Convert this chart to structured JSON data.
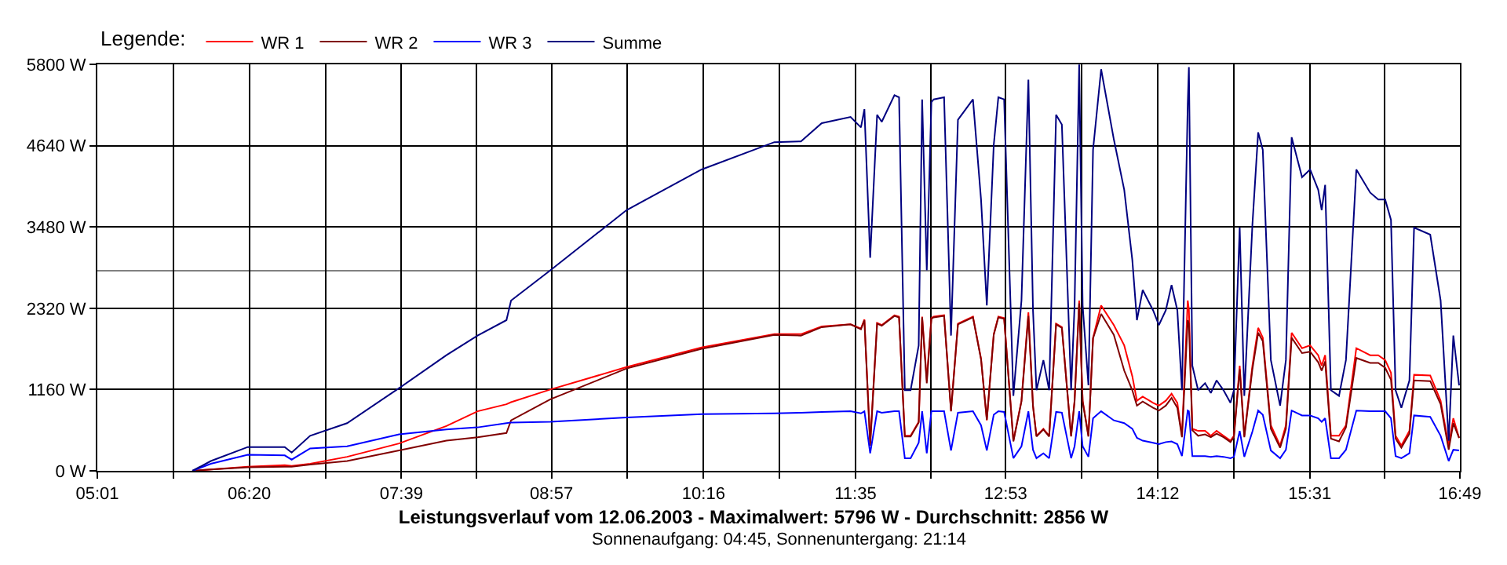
{
  "chart_data": {
    "type": "line",
    "title": "Leistungsverlauf vom 12.06.2003 - Maximalwert: 5796 W - Durchschnitt: 2856 W",
    "subtitle": "Sonnenaufgang: 04:45, Sonnenuntergang: 21:14",
    "legend_title": "Legende:",
    "x": [
      5.84,
      6.0,
      6.32,
      6.64,
      6.7,
      6.86,
      7.18,
      7.63,
      8.04,
      8.31,
      8.56,
      8.6,
      8.94,
      9.6,
      10.25,
      10.88,
      11.11,
      11.29,
      11.54,
      11.63,
      11.66,
      11.71,
      11.77,
      11.81,
      11.92,
      11.96,
      12.01,
      12.06,
      12.13,
      12.16,
      12.2,
      12.24,
      12.26,
      12.35,
      12.41,
      12.47,
      12.6,
      12.67,
      12.72,
      12.78,
      12.82,
      12.87,
      12.95,
      13.02,
      13.08,
      13.12,
      13.15,
      13.21,
      13.26,
      13.32,
      13.37,
      13.45,
      13.48,
      13.52,
      13.55,
      13.6,
      13.64,
      13.71,
      13.82,
      13.91,
      13.98,
      14.02,
      14.07,
      14.16,
      14.21,
      14.27,
      14.32,
      14.37,
      14.41,
      14.46,
      14.47,
      14.5,
      14.55,
      14.61,
      14.66,
      14.71,
      14.77,
      14.83,
      14.86,
      14.91,
      14.95,
      15.02,
      15.07,
      15.11,
      15.18,
      15.26,
      15.31,
      15.36,
      15.45,
      15.52,
      15.59,
      15.62,
      15.65,
      15.7,
      15.77,
      15.83,
      15.92,
      16.04,
      16.11,
      16.17,
      16.22,
      16.26,
      16.31,
      16.38,
      16.42,
      16.56,
      16.65,
      16.72,
      16.76,
      16.81
    ],
    "series": [
      {
        "name": "WR 1",
        "color": "#ff0000",
        "values": [
          0,
          20,
          60,
          80,
          70,
          100,
          200,
          390,
          640,
          850,
          950,
          980,
          1160,
          1480,
          1760,
          1950,
          1950,
          2060,
          2090,
          2030,
          2160,
          400,
          2110,
          2080,
          2220,
          2200,
          500,
          500,
          700,
          2200,
          1300,
          2180,
          2200,
          2220,
          860,
          2100,
          2200,
          1600,
          720,
          1950,
          2200,
          2180,
          430,
          1000,
          2260,
          930,
          500,
          600,
          500,
          2100,
          2050,
          500,
          1000,
          2430,
          1000,
          500,
          1900,
          2360,
          2080,
          1790,
          1350,
          1000,
          1060,
          970,
          930,
          1000,
          1100,
          970,
          500,
          2430,
          2300,
          600,
          570,
          570,
          500,
          570,
          500,
          430,
          500,
          1500,
          500,
          1500,
          2040,
          1900,
          650,
          360,
          650,
          1970,
          1750,
          1790,
          1650,
          1500,
          1650,
          500,
          500,
          650,
          1750,
          1650,
          1650,
          1580,
          1400,
          500,
          360,
          570,
          1370,
          1360,
          1000,
          360,
          750,
          470
        ]
      },
      {
        "name": "WR 2",
        "color": "#800000",
        "values": [
          0,
          20,
          50,
          60,
          60,
          90,
          140,
          290,
          430,
          480,
          540,
          720,
          1020,
          1460,
          1740,
          1940,
          1930,
          2050,
          2090,
          2020,
          2150,
          360,
          2100,
          2070,
          2210,
          2190,
          490,
          490,
          690,
          2190,
          1250,
          2170,
          2190,
          2210,
          850,
          2090,
          2190,
          1590,
          730,
          1940,
          2190,
          2170,
          420,
          990,
          2210,
          920,
          490,
          590,
          490,
          2090,
          2040,
          490,
          990,
          2390,
          990,
          490,
          1890,
          2240,
          1940,
          1430,
          1150,
          930,
          990,
          900,
          860,
          930,
          1040,
          900,
          480,
          2150,
          2100,
          580,
          500,
          520,
          480,
          530,
          480,
          410,
          480,
          1450,
          480,
          1450,
          1970,
          1850,
          600,
          330,
          600,
          1900,
          1680,
          1700,
          1550,
          1430,
          1560,
          460,
          420,
          620,
          1610,
          1540,
          1540,
          1470,
          1300,
          460,
          330,
          530,
          1290,
          1280,
          950,
          300,
          680,
          470
        ]
      },
      {
        "name": "WR 3",
        "color": "#0000ff",
        "values": [
          0,
          100,
          230,
          220,
          160,
          320,
          350,
          520,
          590,
          620,
          680,
          690,
          700,
          760,
          810,
          820,
          830,
          840,
          850,
          820,
          850,
          250,
          850,
          830,
          850,
          850,
          180,
          180,
          400,
          850,
          250,
          850,
          850,
          850,
          290,
          830,
          850,
          650,
          290,
          800,
          850,
          840,
          180,
          350,
          850,
          300,
          180,
          250,
          180,
          840,
          830,
          180,
          350,
          850,
          350,
          200,
          750,
          850,
          720,
          680,
          600,
          470,
          430,
          400,
          380,
          410,
          420,
          380,
          210,
          860,
          850,
          210,
          210,
          210,
          200,
          210,
          200,
          180,
          200,
          570,
          200,
          560,
          860,
          800,
          290,
          180,
          300,
          860,
          790,
          790,
          750,
          700,
          750,
          180,
          180,
          300,
          860,
          850,
          850,
          850,
          750,
          210,
          180,
          250,
          790,
          770,
          500,
          140,
          300,
          290
        ]
      },
      {
        "name": "Summe",
        "color": "#000080",
        "values": [
          0,
          140,
          340,
          340,
          260,
          500,
          680,
          1180,
          1650,
          1930,
          2150,
          2430,
          2860,
          3720,
          4300,
          4690,
          4700,
          4960,
          5050,
          4900,
          5160,
          3040,
          5080,
          4980,
          5360,
          5330,
          1150,
          1150,
          1790,
          5300,
          2860,
          5260,
          5300,
          5330,
          1930,
          5010,
          5300,
          3870,
          2360,
          4650,
          5330,
          5300,
          1070,
          2430,
          5580,
          2290,
          1150,
          1580,
          1150,
          5080,
          4940,
          1150,
          2360,
          5796,
          2360,
          1220,
          4580,
          5730,
          4730,
          4010,
          3010,
          2150,
          2580,
          2290,
          2080,
          2290,
          2650,
          2290,
          1150,
          5230,
          5760,
          1500,
          1150,
          1250,
          1110,
          1290,
          1150,
          970,
          1150,
          3470,
          1070,
          3510,
          4830,
          4580,
          1580,
          930,
          1580,
          4760,
          4190,
          4300,
          4010,
          3720,
          4080,
          1150,
          1070,
          1580,
          4300,
          3970,
          3870,
          3870,
          3580,
          1150,
          900,
          1290,
          3470,
          3370,
          2430,
          430,
          1930,
          1220
        ]
      }
    ],
    "xlim": [
      5.017,
      16.817
    ],
    "xticks": [
      {
        "value": 5.017,
        "label": "05:01"
      },
      {
        "value": 5.675,
        "label": null
      },
      {
        "value": 6.333,
        "label": "06:20"
      },
      {
        "value": 6.992,
        "label": null
      },
      {
        "value": 7.65,
        "label": "07:39"
      },
      {
        "value": 8.3,
        "label": null
      },
      {
        "value": 8.95,
        "label": "08:57"
      },
      {
        "value": 9.608,
        "label": null
      },
      {
        "value": 10.267,
        "label": "10:16"
      },
      {
        "value": 10.925,
        "label": null
      },
      {
        "value": 11.583,
        "label": "11:35"
      },
      {
        "value": 12.233,
        "label": null
      },
      {
        "value": 12.883,
        "label": "12:53"
      },
      {
        "value": 13.542,
        "label": null
      },
      {
        "value": 14.2,
        "label": "14:12"
      },
      {
        "value": 14.858,
        "label": null
      },
      {
        "value": 15.517,
        "label": "15:31"
      },
      {
        "value": 16.167,
        "label": null
      },
      {
        "value": 16.817,
        "label": "16:49"
      }
    ],
    "ylim": [
      0,
      5800
    ],
    "yticks": [
      {
        "value": 0,
        "label": "0 W"
      },
      {
        "value": 1160,
        "label": "1160 W"
      },
      {
        "value": 2320,
        "label": "2320 W"
      },
      {
        "value": 3480,
        "label": "3480 W"
      },
      {
        "value": 4640,
        "label": "4640 W"
      },
      {
        "value": 5800,
        "label": "5800 W"
      }
    ],
    "ref_lines": [
      {
        "axis": "y",
        "value": 2856,
        "color": "#808080"
      }
    ],
    "grid": true,
    "legend": "top left",
    "marker": "none",
    "line_style": "solid"
  }
}
